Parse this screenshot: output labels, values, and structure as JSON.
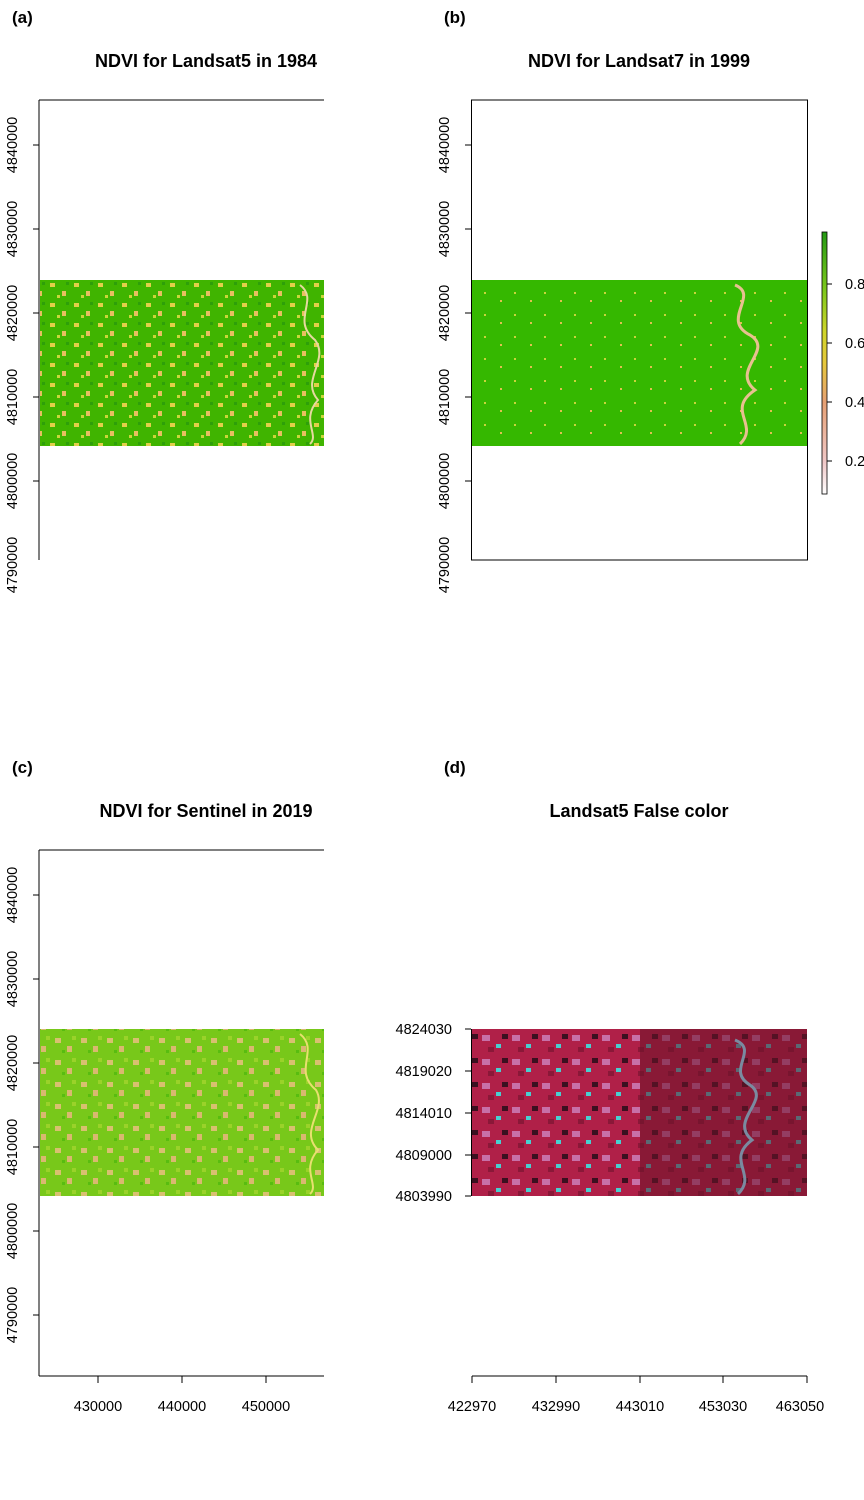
{
  "panels": [
    {
      "id": "a",
      "label": "(a)",
      "title": "NDVI for Landsat5 in 1984",
      "y_ticks": [
        "4840000",
        "4830000",
        "4820000",
        "4810000",
        "4800000",
        "4790000"
      ],
      "x_ticks": []
    },
    {
      "id": "b",
      "label": "(b)",
      "title": "NDVI for Landsat7 in 1999",
      "y_ticks": [
        "4840000",
        "4830000",
        "4820000",
        "4810000",
        "4800000",
        "4790000"
      ],
      "x_ticks": []
    },
    {
      "id": "c",
      "label": "(c)",
      "title": "NDVI for Sentinel in 2019",
      "y_ticks": [
        "4840000",
        "4830000",
        "4820000",
        "4810000",
        "4800000",
        "4790000"
      ],
      "x_ticks": [
        "430000",
        "440000",
        "450000"
      ]
    },
    {
      "id": "d",
      "label": "(d)",
      "title": "Landsat5 False color",
      "y_ticks": [
        "4824030",
        "4819020",
        "4814010",
        "4809000",
        "4803990"
      ],
      "x_ticks": [
        "422970",
        "432990",
        "443010",
        "453030",
        "463050"
      ]
    }
  ],
  "legend": {
    "ticks": [
      "0.8",
      "0.6",
      "0.4",
      "0.2"
    ],
    "colors": [
      "#ffffff",
      "#f2c1c1",
      "#e8a070",
      "#e6c93a",
      "#d9d92a",
      "#8fcf1a",
      "#3fb800",
      "#2a9a10"
    ]
  },
  "colors": {
    "ndvi_high": "#38b400",
    "ndvi_mid": "#7ec81a",
    "ndvi_low": "#e8c85a",
    "false_red": "#b8204a",
    "false_pink": "#c26aa0",
    "false_cyan": "#40d0d0",
    "false_dark": "#3a1020"
  }
}
